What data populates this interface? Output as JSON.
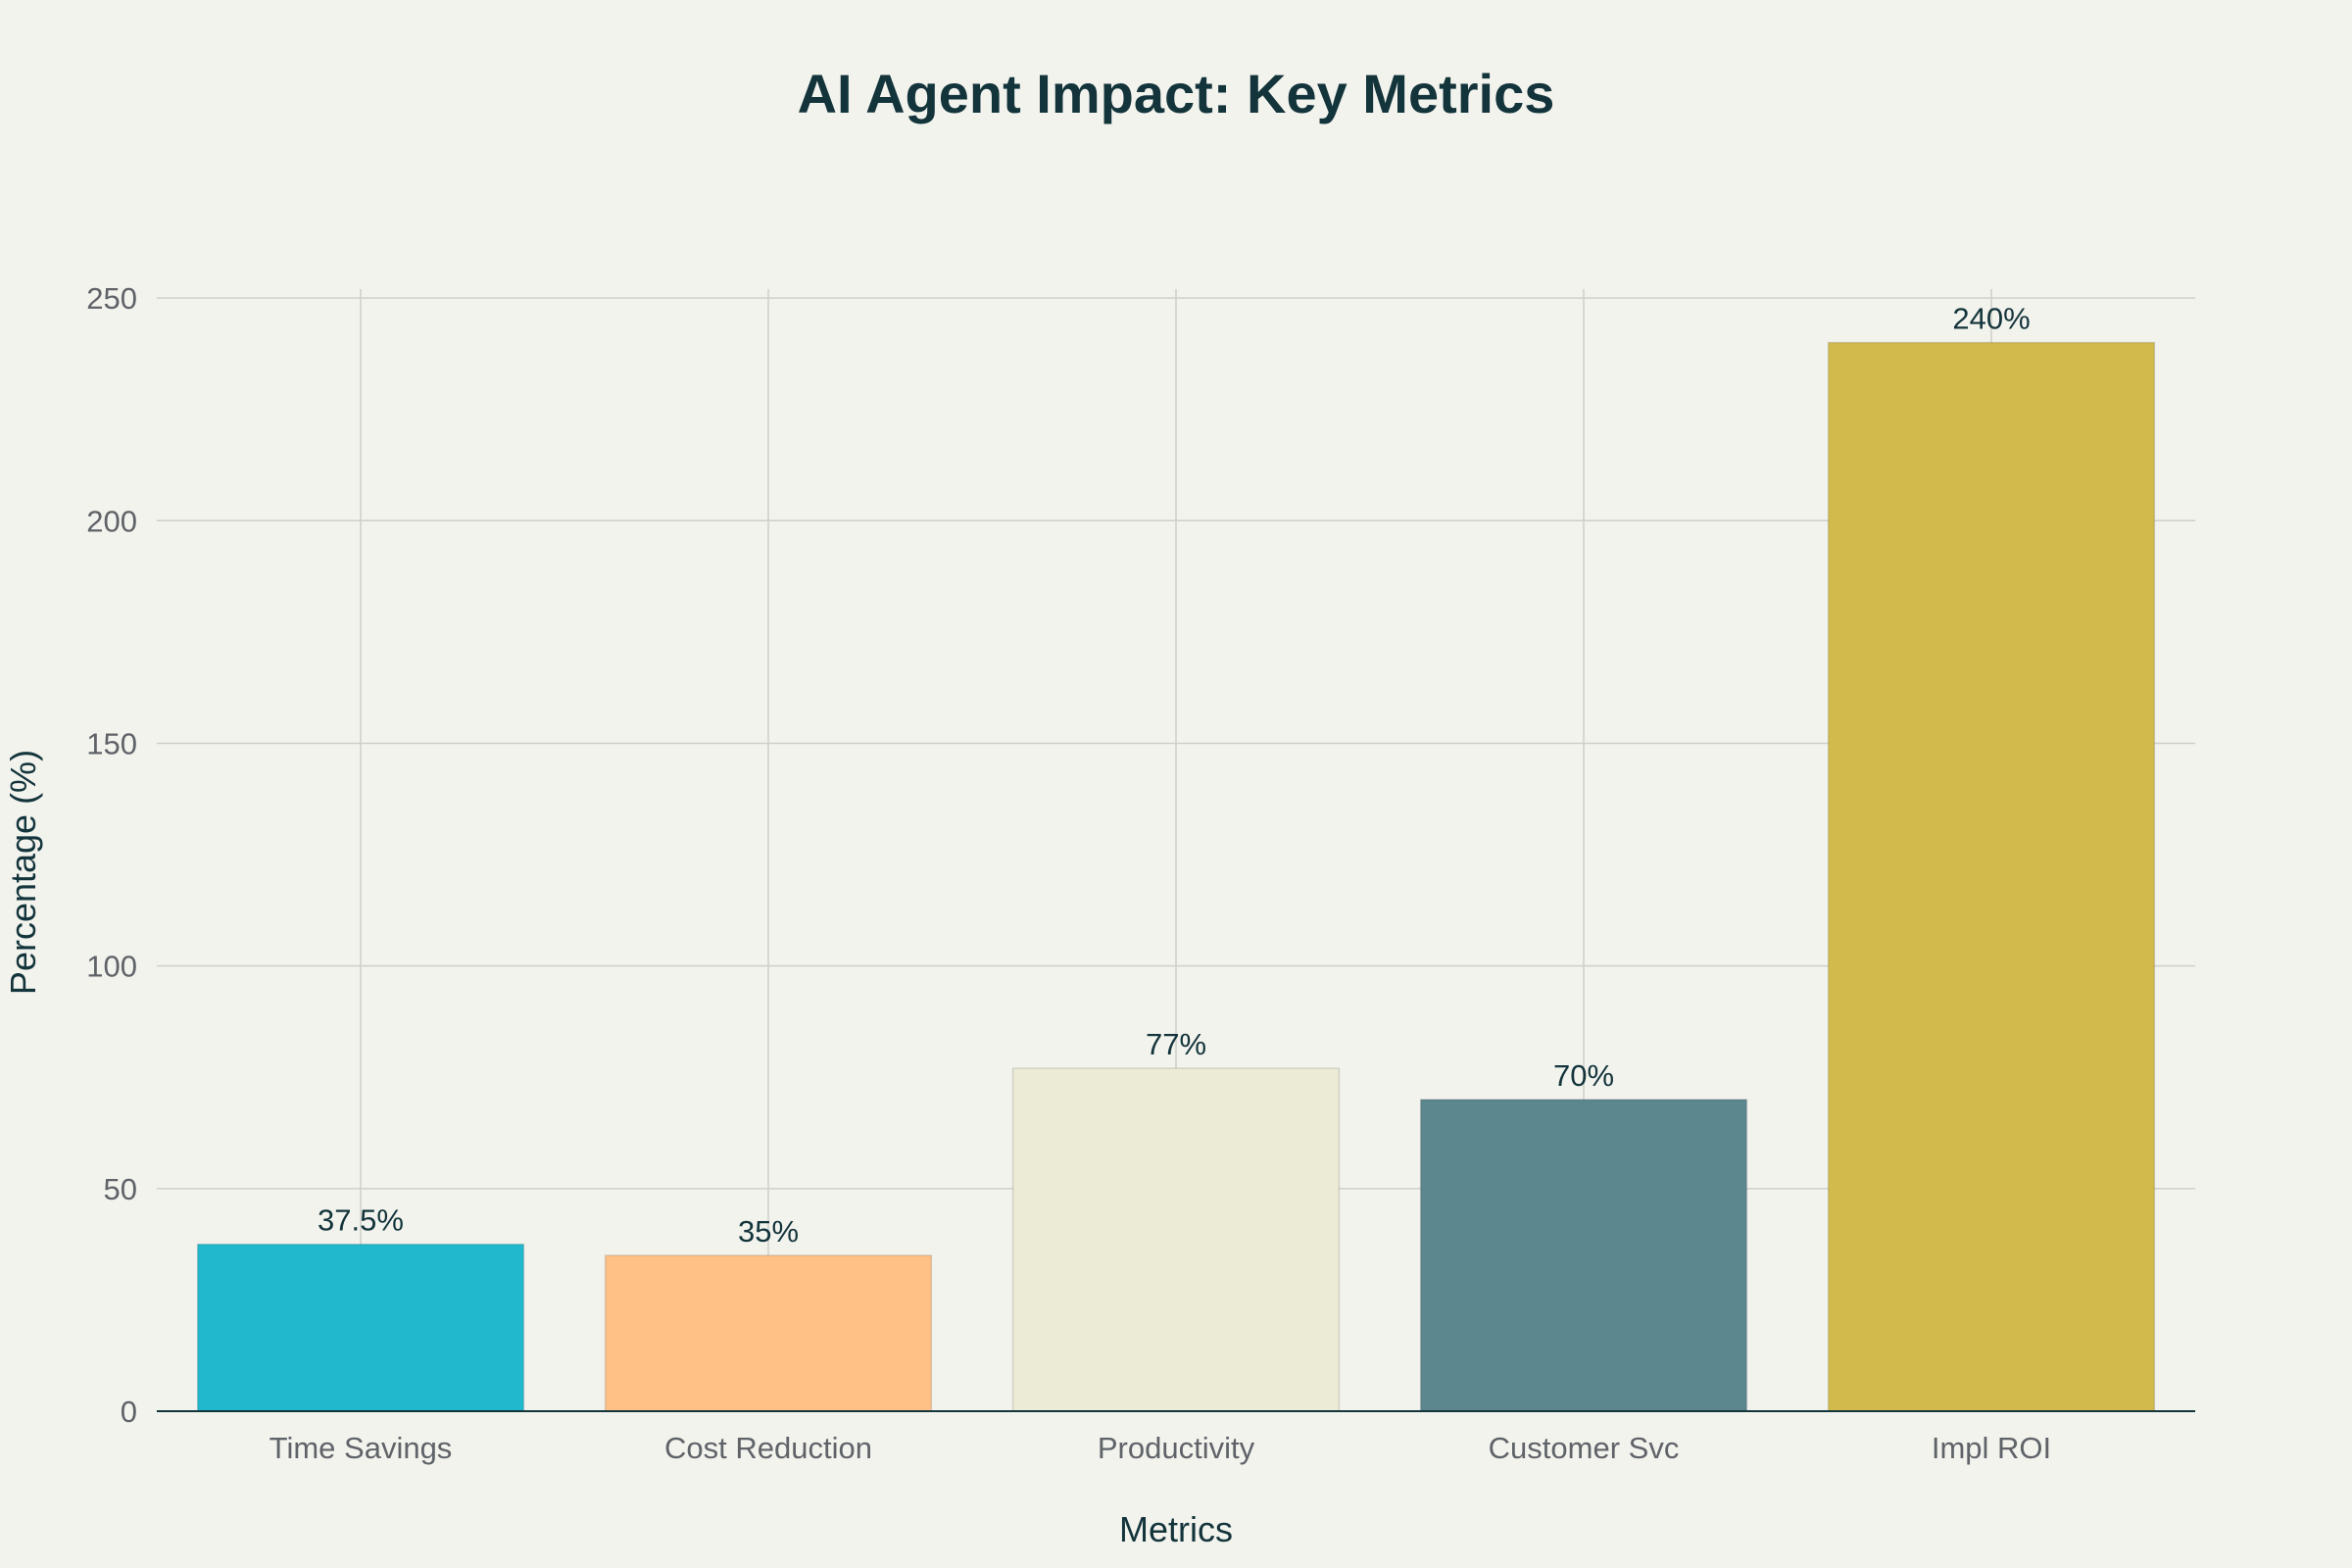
{
  "chart_data": {
    "type": "bar",
    "title": "AI Agent Impact: Key Metrics",
    "xlabel": "Metrics",
    "ylabel": "Percentage (%)",
    "categories": [
      "Time Savings",
      "Cost Reduction",
      "Productivity",
      "Customer Svc",
      "Impl ROI"
    ],
    "values": [
      37.5,
      35,
      77,
      70,
      240
    ],
    "data_labels": [
      "37.5%",
      "35%",
      "77%",
      "70%",
      "240%"
    ],
    "bar_colors": [
      "#21b8cd",
      "#ffc185",
      "#ecebd5",
      "#5d878f",
      "#d2ba4c"
    ],
    "ylim": [
      0,
      252
    ],
    "yticks": [
      0,
      50,
      100,
      150,
      200,
      250
    ],
    "grid": true,
    "legend": "none"
  }
}
